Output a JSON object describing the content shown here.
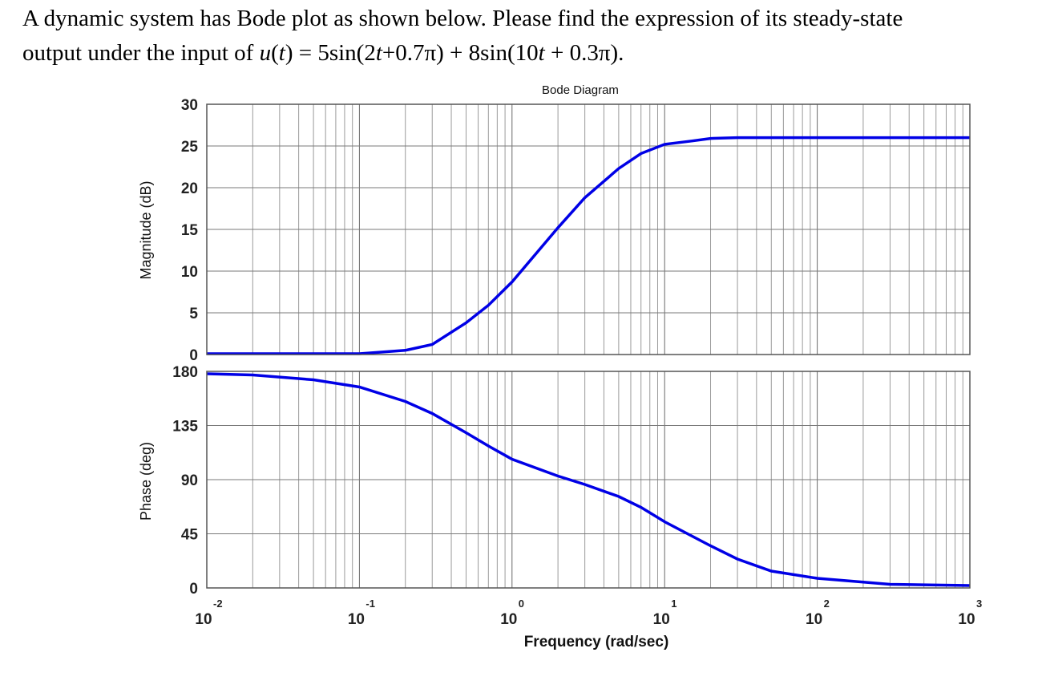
{
  "question": {
    "line1": "A dynamic system has Bode plot as shown below. Please find the expression of its steady-state",
    "line2_prefix": "output under the input of ",
    "u": "u",
    "t": "t",
    "eq_part1": ") = 5sin(2",
    "eq_part2": "+0.7π) + 8sin(10",
    "eq_part3": " + 0.3π)."
  },
  "chart_data": {
    "type": "line",
    "title": "Bode Diagram",
    "xlabel": "Frequency (rad/sec)",
    "xscale": "log",
    "xlim": [
      0.01,
      1000
    ],
    "x_ticks": [
      {
        "base": "10",
        "exp": "-2"
      },
      {
        "base": "10",
        "exp": "-1"
      },
      {
        "base": "10",
        "exp": "0"
      },
      {
        "base": "10",
        "exp": "1"
      },
      {
        "base": "10",
        "exp": "2"
      },
      {
        "base": "10",
        "exp": "3"
      }
    ],
    "grid": true,
    "line_color": "#0000e6",
    "magnitude": {
      "ylabel": "Magnitude (dB)",
      "ylim": [
        0,
        30
      ],
      "yticks": [
        "0",
        "5",
        "10",
        "15",
        "20",
        "25",
        "30"
      ],
      "x": [
        0.01,
        0.1,
        0.2,
        0.3,
        0.5,
        0.7,
        1,
        1.5,
        2,
        3,
        5,
        7,
        10,
        15,
        20,
        30,
        50,
        100,
        1000
      ],
      "y": [
        0.1,
        0.1,
        0.5,
        1.2,
        3.8,
        5.9,
        8.7,
        12.5,
        15.2,
        18.8,
        22.3,
        24.1,
        25.2,
        25.6,
        25.9,
        26.0,
        26.0,
        26.0,
        26.0
      ]
    },
    "phase": {
      "ylabel": "Phase (deg)",
      "ylim": [
        0,
        180
      ],
      "yticks": [
        "0",
        "45",
        "90",
        "135",
        "180"
      ],
      "x": [
        0.01,
        0.02,
        0.05,
        0.1,
        0.2,
        0.3,
        0.5,
        0.7,
        1,
        2,
        3,
        5,
        7,
        10,
        20,
        30,
        50,
        100,
        300,
        1000
      ],
      "y": [
        178,
        177,
        173,
        167,
        155,
        145,
        129,
        118,
        107,
        93,
        86,
        76,
        67,
        55,
        35,
        24,
        14,
        8,
        3,
        2
      ]
    }
  }
}
